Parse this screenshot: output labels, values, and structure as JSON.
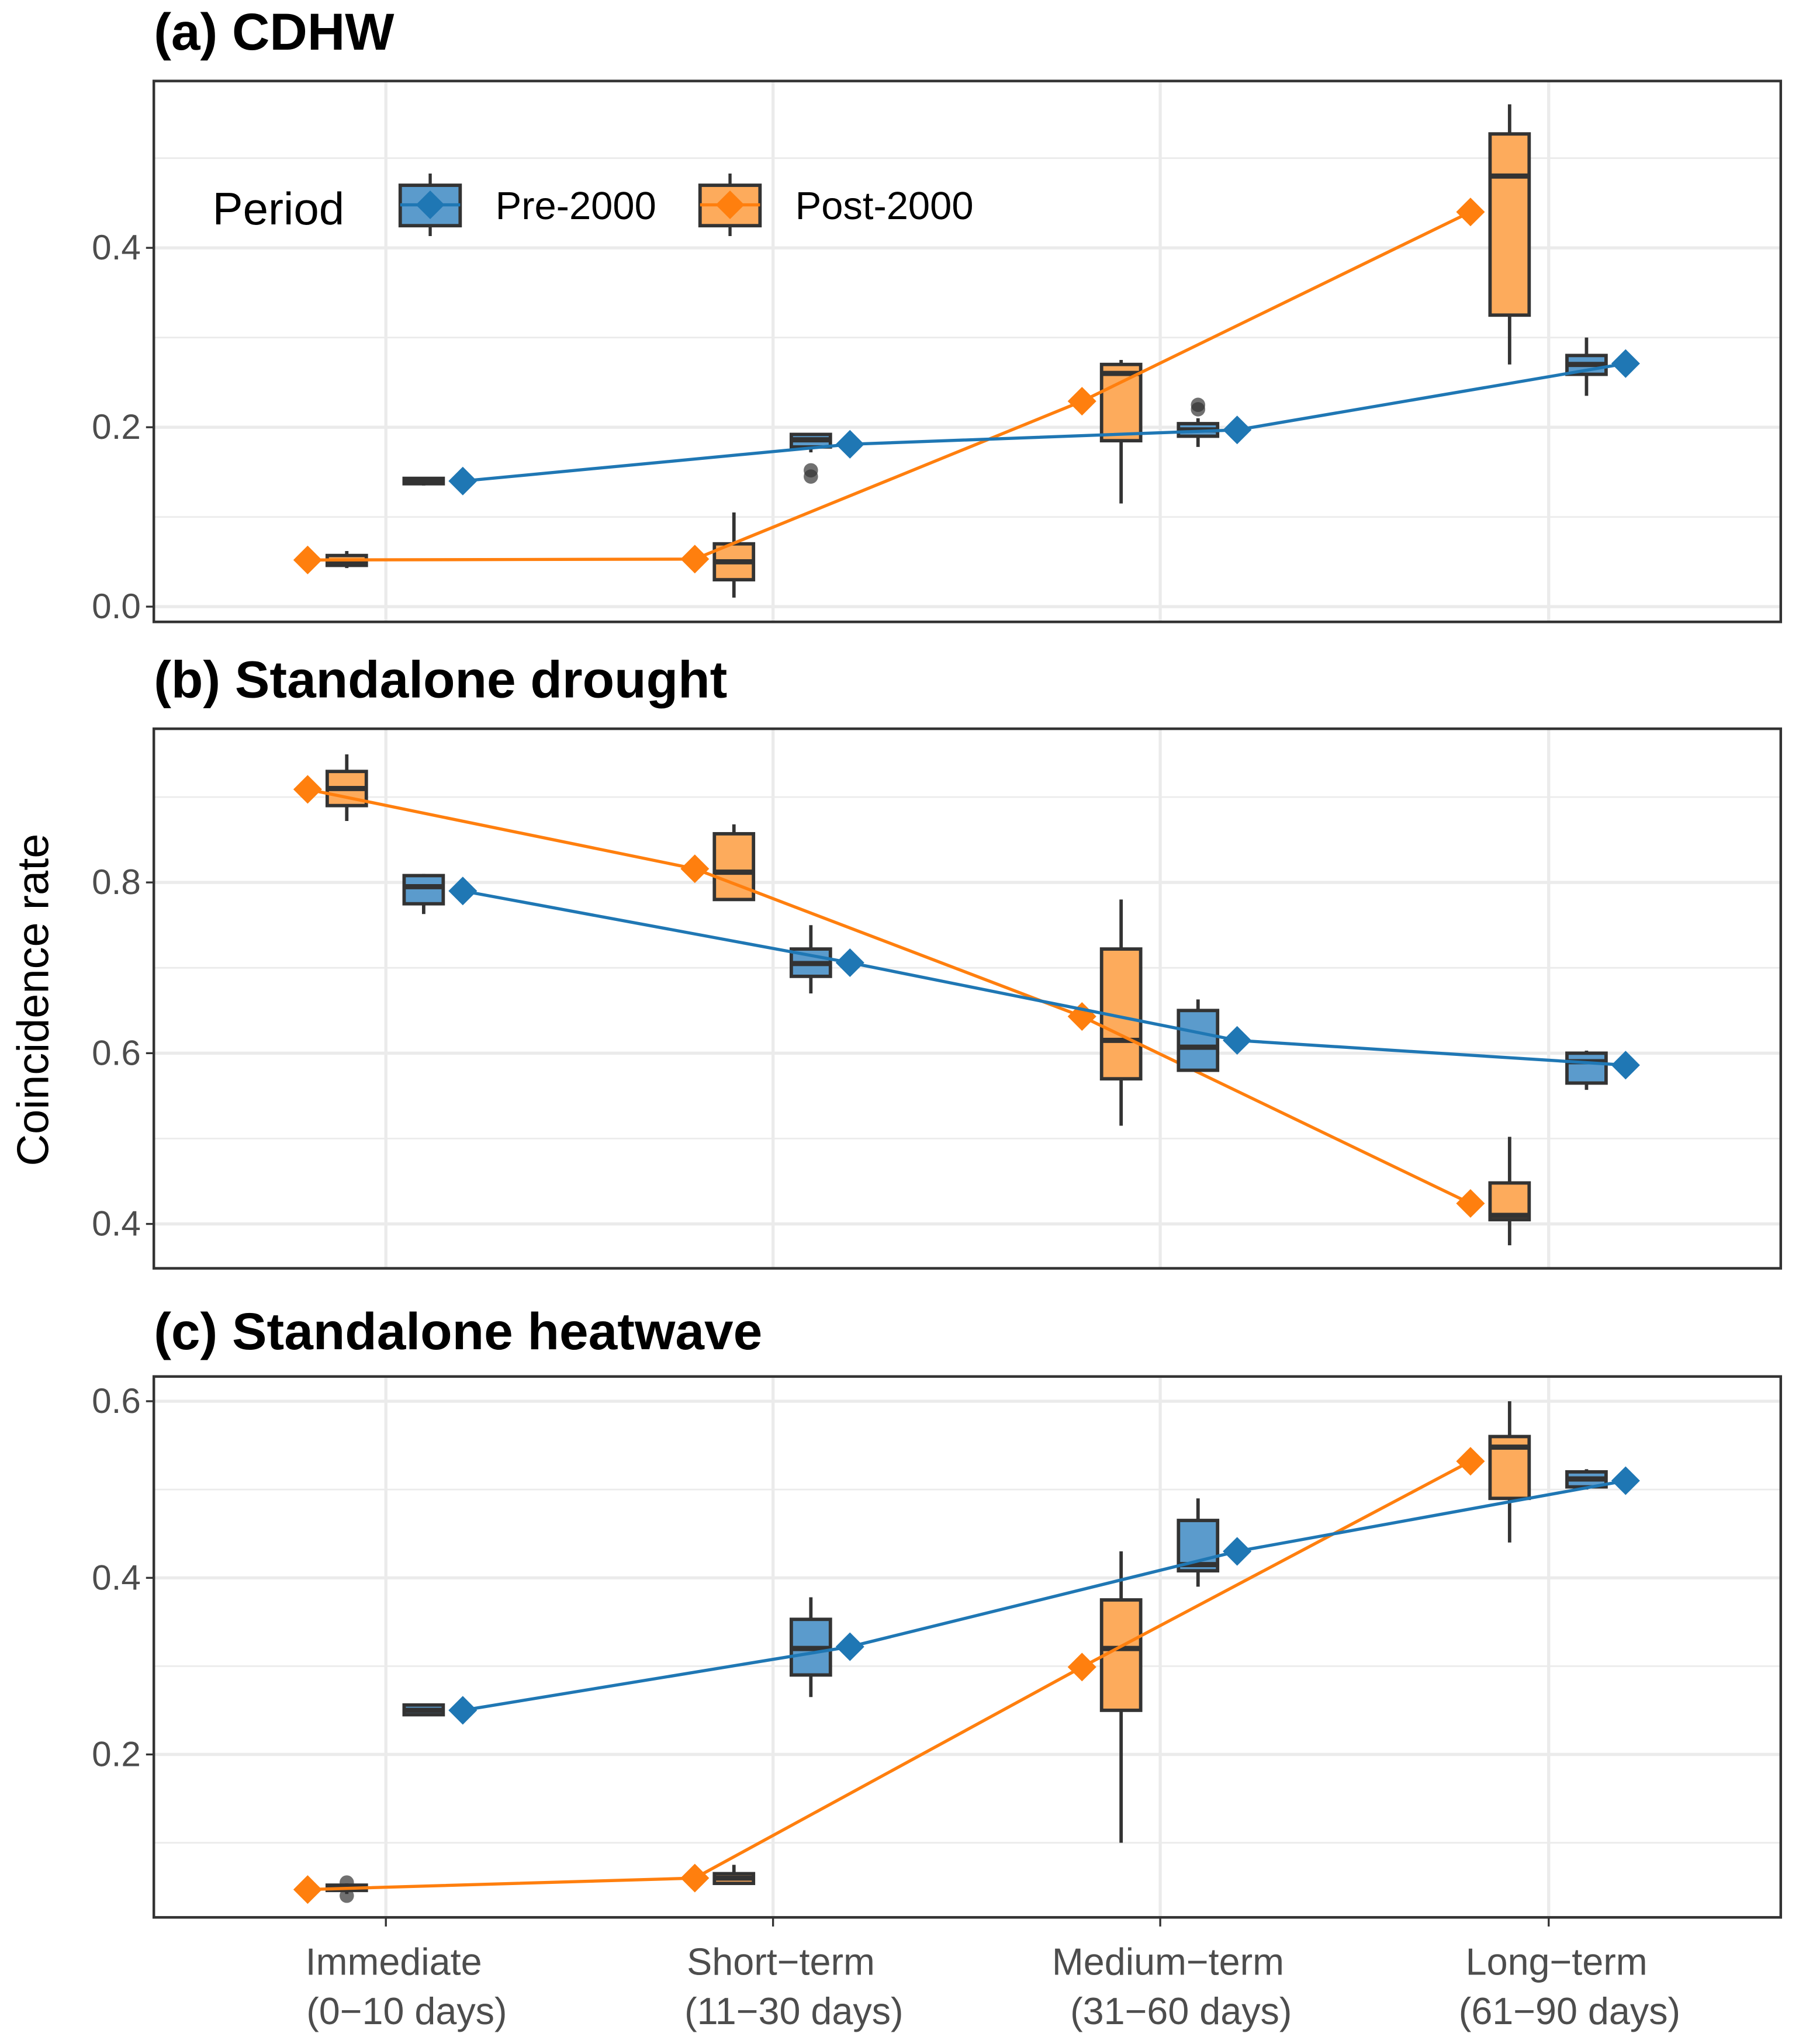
{
  "chart_data": [
    {
      "type": "box",
      "title": "(a) CDHW",
      "ylim": [
        -0.017,
        0.586
      ],
      "yticks": [
        0.0,
        0.2,
        0.4
      ],
      "ytick_labels": [
        "0.0",
        "0.2",
        "0.4"
      ],
      "grid": true,
      "legend": {
        "title": "Period",
        "position": "top-left",
        "entries": [
          "Pre-2000",
          "Post-2000"
        ]
      },
      "series": [
        {
          "name": "Post-2000",
          "color": "#ff7f0e",
          "fill": "#fdab5c",
          "mean": [
            0.052,
            0.053,
            0.229,
            0.44
          ],
          "boxes": [
            {
              "whislo": 0.043,
              "q1": 0.046,
              "med": 0.05,
              "q3": 0.057,
              "whishi": 0.062,
              "outliers": []
            },
            {
              "whislo": 0.01,
              "q1": 0.03,
              "med": 0.05,
              "q3": 0.07,
              "whishi": 0.105,
              "outliers": []
            },
            {
              "whislo": 0.115,
              "q1": 0.185,
              "med": 0.26,
              "q3": 0.27,
              "whishi": 0.275,
              "outliers": []
            },
            {
              "whislo": 0.27,
              "q1": 0.325,
              "med": 0.48,
              "q3": 0.527,
              "whishi": 0.56,
              "outliers": []
            }
          ]
        },
        {
          "name": "Pre-2000",
          "color": "#1f77b4",
          "fill": "#5b9bcc",
          "mean": [
            0.14,
            0.181,
            0.197,
            0.271
          ],
          "boxes": [
            {
              "whislo": 0.135,
              "q1": 0.137,
              "med": 0.14,
              "q3": 0.143,
              "whishi": 0.144,
              "outliers": []
            },
            {
              "whislo": 0.172,
              "q1": 0.178,
              "med": 0.186,
              "q3": 0.192,
              "whishi": 0.193,
              "outliers": [
                0.145,
                0.152
              ]
            },
            {
              "whislo": 0.178,
              "q1": 0.19,
              "med": 0.197,
              "q3": 0.204,
              "whishi": 0.21,
              "outliers": [
                0.22,
                0.225
              ]
            },
            {
              "whislo": 0.235,
              "q1": 0.259,
              "med": 0.27,
              "q3": 0.28,
              "whishi": 0.3,
              "outliers": []
            }
          ]
        }
      ]
    },
    {
      "type": "box",
      "title": "(b) Standalone drought",
      "ylim": [
        0.348,
        0.98
      ],
      "yticks": [
        0.4,
        0.6,
        0.8
      ],
      "ytick_labels": [
        "0.4",
        "0.6",
        "0.8"
      ],
      "grid": true,
      "series": [
        {
          "name": "Post-2000",
          "color": "#ff7f0e",
          "fill": "#fdab5c",
          "mean": [
            0.909,
            0.816,
            0.643,
            0.424
          ],
          "boxes": [
            {
              "whislo": 0.872,
              "q1": 0.89,
              "med": 0.91,
              "q3": 0.93,
              "whishi": 0.95,
              "outliers": []
            },
            {
              "whislo": 0.78,
              "q1": 0.78,
              "med": 0.812,
              "q3": 0.857,
              "whishi": 0.868,
              "outliers": []
            },
            {
              "whislo": 0.515,
              "q1": 0.57,
              "med": 0.615,
              "q3": 0.722,
              "whishi": 0.78,
              "outliers": []
            },
            {
              "whislo": 0.375,
              "q1": 0.405,
              "med": 0.41,
              "q3": 0.448,
              "whishi": 0.502,
              "outliers": []
            }
          ]
        },
        {
          "name": "Pre-2000",
          "color": "#1f77b4",
          "fill": "#5b9bcc",
          "mean": [
            0.79,
            0.706,
            0.615,
            0.586
          ],
          "boxes": [
            {
              "whislo": 0.763,
              "q1": 0.775,
              "med": 0.795,
              "q3": 0.808,
              "whishi": 0.81,
              "outliers": []
            },
            {
              "whislo": 0.67,
              "q1": 0.69,
              "med": 0.705,
              "q3": 0.722,
              "whishi": 0.75,
              "outliers": []
            },
            {
              "whislo": 0.58,
              "q1": 0.58,
              "med": 0.607,
              "q3": 0.65,
              "whishi": 0.663,
              "outliers": []
            },
            {
              "whislo": 0.557,
              "q1": 0.565,
              "med": 0.59,
              "q3": 0.6,
              "whishi": 0.603,
              "outliers": []
            }
          ]
        }
      ]
    },
    {
      "type": "box",
      "title": "(c) Standalone heatwave",
      "ylim": [
        0.0155,
        0.628
      ],
      "yticks": [
        0.2,
        0.4,
        0.6
      ],
      "ytick_labels": [
        "0.2",
        "0.4",
        "0.6"
      ],
      "grid": true,
      "series": [
        {
          "name": "Post-2000",
          "color": "#ff7f0e",
          "fill": "#fdab5c",
          "mean": [
            0.047,
            0.06,
            0.299,
            0.532
          ],
          "boxes": [
            {
              "whislo": 0.042,
              "q1": 0.046,
              "med": 0.048,
              "q3": 0.052,
              "whishi": 0.054,
              "outliers": [
                0.04,
                0.055
              ]
            },
            {
              "whislo": 0.054,
              "q1": 0.054,
              "med": 0.06,
              "q3": 0.065,
              "whishi": 0.075,
              "outliers": []
            },
            {
              "whislo": 0.1,
              "q1": 0.25,
              "med": 0.32,
              "q3": 0.375,
              "whishi": 0.43,
              "outliers": []
            },
            {
              "whislo": 0.44,
              "q1": 0.49,
              "med": 0.548,
              "q3": 0.56,
              "whishi": 0.6,
              "outliers": []
            }
          ]
        },
        {
          "name": "Pre-2000",
          "color": "#1f77b4",
          "fill": "#5b9bcc",
          "mean": [
            0.25,
            0.322,
            0.43,
            0.51
          ],
          "boxes": [
            {
              "whislo": 0.244,
              "q1": 0.245,
              "med": 0.25,
              "q3": 0.256,
              "whishi": 0.257,
              "outliers": []
            },
            {
              "whislo": 0.265,
              "q1": 0.29,
              "med": 0.32,
              "q3": 0.353,
              "whishi": 0.378,
              "outliers": []
            },
            {
              "whislo": 0.39,
              "q1": 0.408,
              "med": 0.415,
              "q3": 0.465,
              "whishi": 0.49,
              "outliers": []
            },
            {
              "whislo": 0.5,
              "q1": 0.503,
              "med": 0.512,
              "q3": 0.52,
              "whishi": 0.523,
              "outliers": []
            }
          ]
        }
      ]
    }
  ],
  "categories": [
    [
      "Immediate",
      "(0−10 days)"
    ],
    [
      "Short−term",
      "(11−30 days)"
    ],
    [
      "Medium−term",
      "(31−60 days)"
    ],
    [
      "Long−term",
      "(61−90 days)"
    ]
  ],
  "ylabel": "Coincidence rate"
}
